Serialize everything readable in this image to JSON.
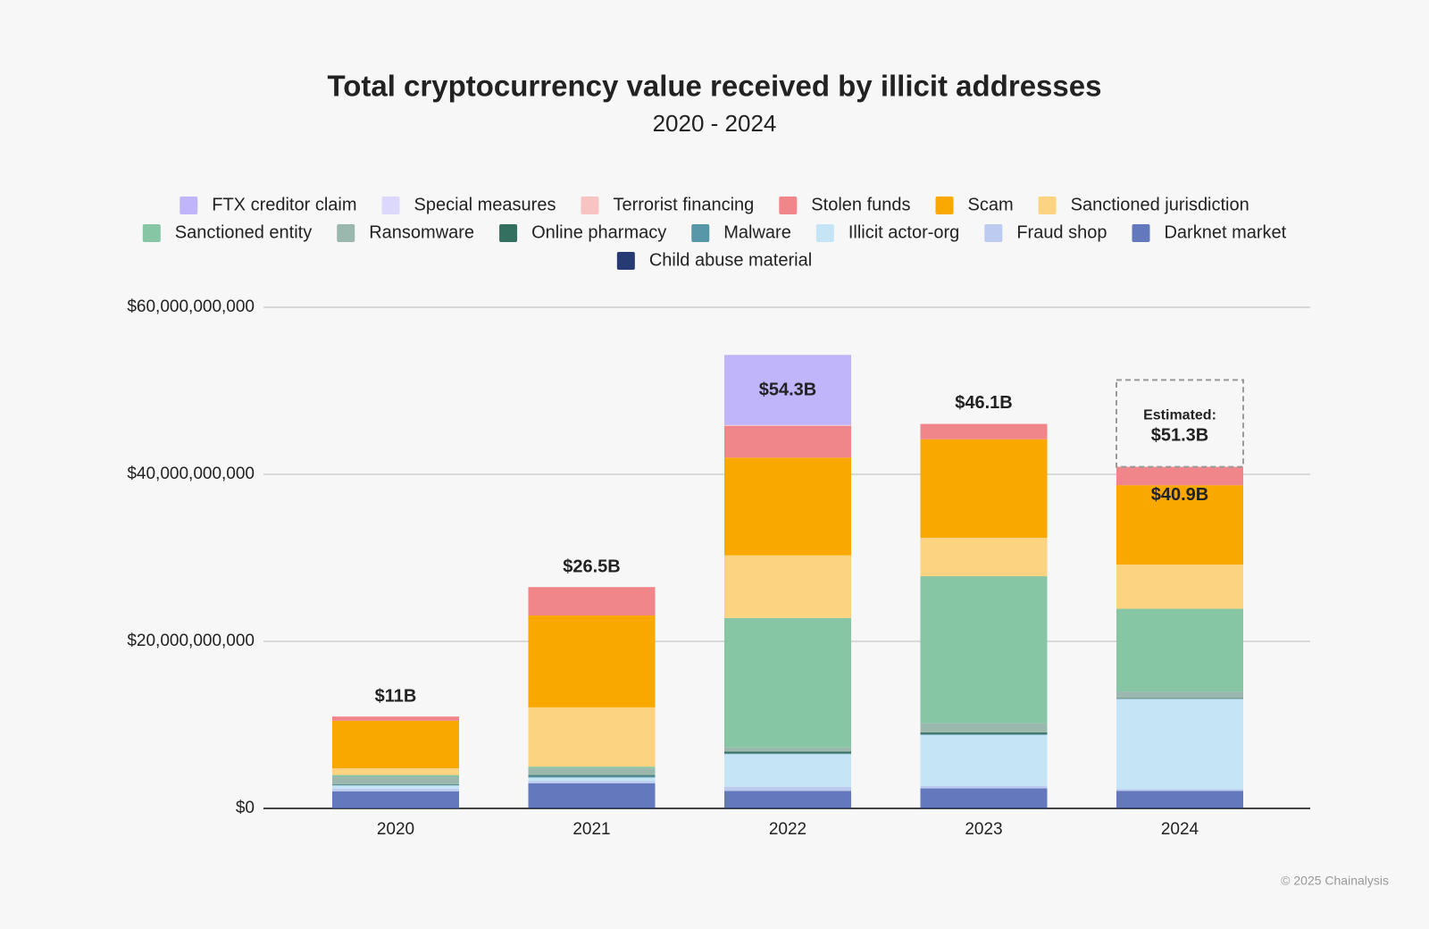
{
  "chart_data": {
    "type": "stacked_bar",
    "title": "Total cryptocurrency value received by illicit addresses",
    "subtitle": "2020 - 2024",
    "categories": [
      "2020",
      "2021",
      "2022",
      "2023",
      "2024"
    ],
    "series": [
      {
        "name": "FTX creditor claim",
        "color": "#c0b5fb",
        "values": [
          0,
          0,
          8400000000.0,
          0,
          0
        ]
      },
      {
        "name": "Special measures",
        "color": "#dcd8fc",
        "values": [
          0,
          0,
          0,
          0,
          0
        ]
      },
      {
        "name": "Terrorist financing",
        "color": "#f8c3c3",
        "values": [
          0,
          0,
          100000000.0,
          100000000.0,
          0
        ]
      },
      {
        "name": "Stolen funds",
        "color": "#f0868a",
        "values": [
          500000000.0,
          3400000000.0,
          3800000000.0,
          1800000000.0,
          2200000000.0
        ]
      },
      {
        "name": "Scam",
        "color": "#f9a800",
        "values": [
          5700000000.0,
          11000000000.0,
          11700000000.0,
          11800000000.0,
          9500000000.0
        ]
      },
      {
        "name": "Sanctioned jurisdiction",
        "color": "#fcd381",
        "values": [
          800000000.0,
          7100000000.0,
          7500000000.0,
          4600000000.0,
          5300000000.0
        ]
      },
      {
        "name": "Sanctioned entity",
        "color": "#86c6a4",
        "values": [
          200000000.0,
          200000000.0,
          15500000000.0,
          17600000000.0,
          9900000000.0
        ]
      },
      {
        "name": "Ransomware",
        "color": "#9ab8ae",
        "values": [
          900000000.0,
          800000000.0,
          500000000.0,
          1100000000.0,
          800000000.0
        ]
      },
      {
        "name": "Online pharmacy",
        "color": "#34705f",
        "values": [
          50000000.0,
          100000000.0,
          200000000.0,
          200000000.0,
          50000000.0
        ]
      },
      {
        "name": "Malware",
        "color": "#5797a8",
        "values": [
          100000000.0,
          200000000.0,
          100000000.0,
          100000000.0,
          50000000.0
        ]
      },
      {
        "name": "Illicit actor-org",
        "color": "#c5e5f6",
        "values": [
          400000000.0,
          400000000.0,
          3900000000.0,
          6100000000.0,
          10800000000.0
        ]
      },
      {
        "name": "Fraud shop",
        "color": "#bdcbf0",
        "values": [
          300000000.0,
          300000000.0,
          500000000.0,
          300000000.0,
          200000000.0
        ]
      },
      {
        "name": "Darknet market",
        "color": "#6478be",
        "values": [
          2000000000.0,
          2900000000.0,
          2000000000.0,
          2300000000.0,
          2000000000.0
        ]
      },
      {
        "name": "Child abuse material",
        "color": "#283a73",
        "values": [
          50000000.0,
          100000000.0,
          100000000.0,
          100000000.0,
          100000000.0
        ]
      }
    ],
    "totals": {
      "values": [
        11000000000.0,
        26500000000.0,
        54300000000.0,
        46100000000.0,
        40900000000.0
      ],
      "value_labels": [
        "$11B",
        "$26.5B",
        "$54.3B",
        "$46.1B",
        "$40.9B"
      ]
    },
    "estimate": {
      "text": "Estimated:",
      "value": 51300000000.0,
      "value_label": "$51.3B"
    },
    "ylim": [
      0,
      60000000000
    ],
    "yticks": [
      {
        "value": 0,
        "label": "$0"
      },
      {
        "value": 20000000000,
        "label": "$20,000,000,000"
      },
      {
        "value": 40000000000,
        "label": "$40,000,000,000"
      },
      {
        "value": 60000000000,
        "label": "$60,000,000,000"
      }
    ],
    "grid": true,
    "source": "© 2025 Chainalysis"
  }
}
